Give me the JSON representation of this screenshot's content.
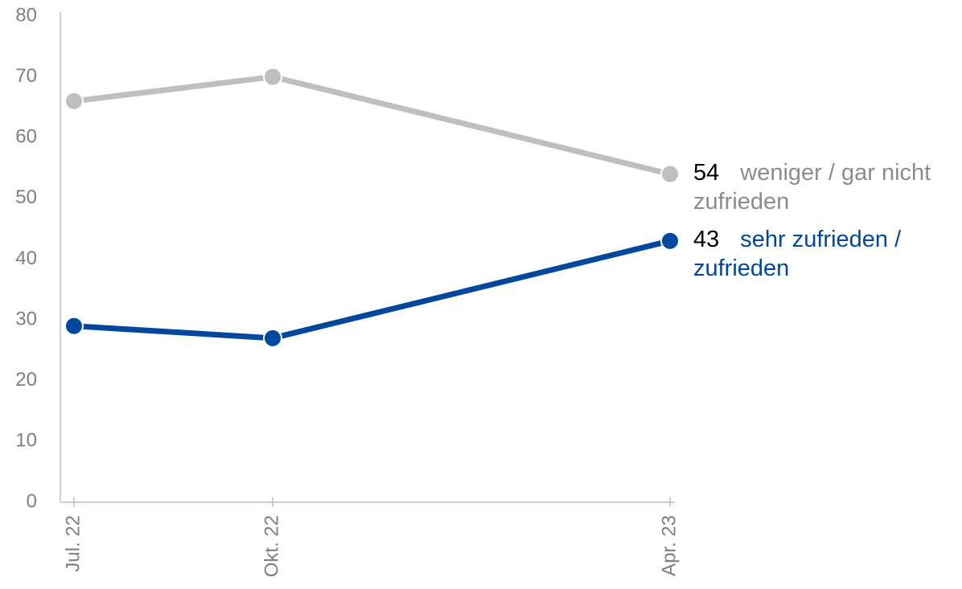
{
  "chart_data": {
    "type": "line",
    "x": [
      "2022-07",
      "2022-10",
      "2023-04"
    ],
    "xlim": [
      "2022-07",
      "2023-04"
    ],
    "xticks": [
      {
        "value": "2022-07",
        "label": "Jul. 22"
      },
      {
        "value": "2022-10",
        "label": "Okt. 22"
      },
      {
        "value": "2023-04",
        "label": "Apr. 23"
      }
    ],
    "ylim": [
      0,
      80
    ],
    "yticks": [
      0,
      10,
      20,
      30,
      40,
      50,
      60,
      70,
      80
    ],
    "series": [
      {
        "name": "weniger / gar nicht zufrieden",
        "color": "#bfbfbf",
        "values": [
          66,
          70,
          54
        ]
      },
      {
        "name": "sehr zufrieden / zufrieden",
        "color": "#00479d",
        "values": [
          29,
          27,
          43
        ]
      }
    ]
  }
}
